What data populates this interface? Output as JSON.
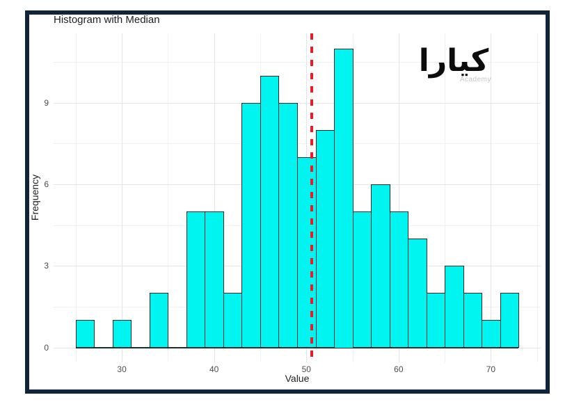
{
  "figure": {
    "title": "Histogram with Median",
    "x_axis_title": "Value",
    "y_axis_title": "Frequency"
  },
  "watermark": {
    "wordmark": "كيارا",
    "subtitle": "Academy"
  },
  "colors": {
    "frame_border": "#11243a",
    "bar_fill": "#00f5f0",
    "bar_outline": "#0f2e2c",
    "median_line": "#ed1c24",
    "grid_major": "#e4e4e4",
    "grid_minor": "#f1f1f1",
    "tick_label": "#4d4d4d",
    "baseline": "#14302e"
  },
  "chart_data": {
    "type": "bar",
    "subtype": "histogram",
    "title": "Histogram with Median",
    "xlabel": "Value",
    "ylabel": "Frequency",
    "bin_start": 25,
    "bin_width": 2,
    "bins": [
      {
        "range": [
          25,
          27
        ],
        "count": 1
      },
      {
        "range": [
          27,
          29
        ],
        "count": 0
      },
      {
        "range": [
          29,
          31
        ],
        "count": 1
      },
      {
        "range": [
          31,
          33
        ],
        "count": 0
      },
      {
        "range": [
          33,
          35
        ],
        "count": 2
      },
      {
        "range": [
          35,
          37
        ],
        "count": 0
      },
      {
        "range": [
          37,
          39
        ],
        "count": 5
      },
      {
        "range": [
          39,
          41
        ],
        "count": 5
      },
      {
        "range": [
          41,
          43
        ],
        "count": 2
      },
      {
        "range": [
          43,
          45
        ],
        "count": 9
      },
      {
        "range": [
          45,
          47
        ],
        "count": 10
      },
      {
        "range": [
          47,
          49
        ],
        "count": 9
      },
      {
        "range": [
          49,
          51
        ],
        "count": 7
      },
      {
        "range": [
          51,
          53
        ],
        "count": 8
      },
      {
        "range": [
          53,
          55
        ],
        "count": 11
      },
      {
        "range": [
          55,
          57
        ],
        "count": 5
      },
      {
        "range": [
          57,
          59
        ],
        "count": 6
      },
      {
        "range": [
          59,
          61
        ],
        "count": 5
      },
      {
        "range": [
          61,
          63
        ],
        "count": 4
      },
      {
        "range": [
          63,
          65
        ],
        "count": 2
      },
      {
        "range": [
          65,
          67
        ],
        "count": 3
      },
      {
        "range": [
          67,
          69
        ],
        "count": 2
      },
      {
        "range": [
          69,
          71
        ],
        "count": 1
      },
      {
        "range": [
          71,
          73
        ],
        "count": 2
      }
    ],
    "median": 50.6,
    "median_line_style": "dashed-red-vertical",
    "x_ticks": [
      30,
      40,
      50,
      60,
      70
    ],
    "x_minor_gridlines": [
      25,
      35,
      45,
      55,
      65,
      75
    ],
    "y_ticks": [
      0,
      3,
      6,
      9
    ],
    "y_minor_gridlines": [
      1.5,
      4.5,
      7.5,
      10.5
    ],
    "xlim": [
      22.6,
      75.4
    ],
    "ylim": [
      -0.55,
      11.55
    ],
    "grid": true,
    "legend": false
  }
}
